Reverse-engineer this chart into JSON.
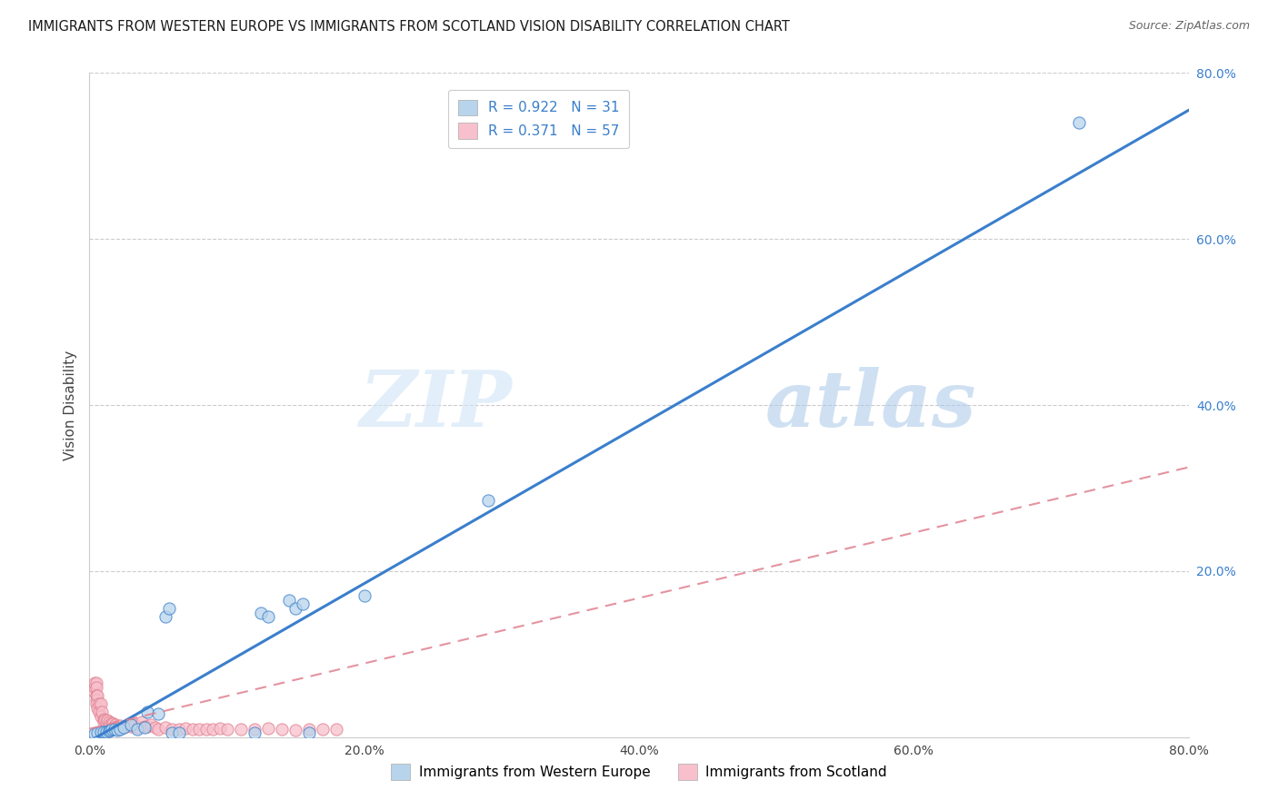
{
  "title": "IMMIGRANTS FROM WESTERN EUROPE VS IMMIGRANTS FROM SCOTLAND VISION DISABILITY CORRELATION CHART",
  "source": "Source: ZipAtlas.com",
  "ylabel": "Vision Disability",
  "xlim": [
    0.0,
    0.8
  ],
  "ylim": [
    0.0,
    0.8
  ],
  "xtick_labels": [
    "0.0%",
    "20.0%",
    "40.0%",
    "60.0%",
    "80.0%"
  ],
  "xtick_vals": [
    0.0,
    0.2,
    0.4,
    0.6,
    0.8
  ],
  "ytick_labels": [
    "20.0%",
    "40.0%",
    "60.0%",
    "80.0%"
  ],
  "ytick_vals": [
    0.2,
    0.4,
    0.6,
    0.8
  ],
  "legend_r1": "0.922",
  "legend_n1": "31",
  "legend_r2": "0.371",
  "legend_n2": "57",
  "legend_label1": "Immigrants from Western Europe",
  "legend_label2": "Immigrants from Scotland",
  "blue_scatter_color": "#b8d4ec",
  "blue_line_color": "#3a7fcc",
  "pink_scatter_color": "#f7c0cc",
  "pink_line_color": "#e08090",
  "watermark_zip": "ZIP",
  "watermark_atlas": "atlas",
  "blue_regression_x0": 0.0,
  "blue_regression_y0": -0.005,
  "blue_regression_x1": 0.8,
  "blue_regression_y1": 0.755,
  "pink_regression_x0": 0.0,
  "pink_regression_y0": 0.01,
  "pink_regression_x1": 0.8,
  "pink_regression_y1": 0.325,
  "blue_scatter_x": [
    0.004,
    0.006,
    0.008,
    0.01,
    0.012,
    0.014,
    0.015,
    0.016,
    0.018,
    0.02,
    0.022,
    0.025,
    0.03,
    0.035,
    0.04,
    0.042,
    0.05,
    0.055,
    0.058,
    0.06,
    0.065,
    0.12,
    0.125,
    0.13,
    0.145,
    0.15,
    0.155,
    0.16,
    0.2,
    0.29,
    0.72
  ],
  "blue_scatter_y": [
    0.004,
    0.005,
    0.006,
    0.006,
    0.006,
    0.007,
    0.008,
    0.01,
    0.009,
    0.008,
    0.01,
    0.012,
    0.015,
    0.01,
    0.012,
    0.03,
    0.028,
    0.145,
    0.155,
    0.005,
    0.005,
    0.005,
    0.15,
    0.145,
    0.165,
    0.155,
    0.16,
    0.005,
    0.17,
    0.285,
    0.74
  ],
  "pink_scatter_x": [
    0.003,
    0.004,
    0.004,
    0.005,
    0.005,
    0.005,
    0.005,
    0.005,
    0.006,
    0.006,
    0.007,
    0.007,
    0.008,
    0.008,
    0.009,
    0.01,
    0.01,
    0.011,
    0.012,
    0.013,
    0.014,
    0.015,
    0.016,
    0.017,
    0.018,
    0.019,
    0.02,
    0.022,
    0.025,
    0.028,
    0.03,
    0.033,
    0.035,
    0.038,
    0.04,
    0.042,
    0.045,
    0.048,
    0.05,
    0.055,
    0.06,
    0.065,
    0.07,
    0.075,
    0.08,
    0.085,
    0.09,
    0.095,
    0.1,
    0.11,
    0.12,
    0.13,
    0.14,
    0.15,
    0.16,
    0.17,
    0.18
  ],
  "pink_scatter_y": [
    0.055,
    0.06,
    0.065,
    0.065,
    0.06,
    0.05,
    0.045,
    0.04,
    0.05,
    0.035,
    0.04,
    0.03,
    0.04,
    0.025,
    0.03,
    0.022,
    0.018,
    0.02,
    0.018,
    0.02,
    0.018,
    0.015,
    0.017,
    0.016,
    0.013,
    0.015,
    0.013,
    0.014,
    0.012,
    0.015,
    0.013,
    0.015,
    0.012,
    0.018,
    0.013,
    0.013,
    0.015,
    0.012,
    0.01,
    0.012,
    0.01,
    0.01,
    0.011,
    0.01,
    0.009,
    0.01,
    0.01,
    0.011,
    0.009,
    0.01,
    0.01,
    0.011,
    0.009,
    0.008,
    0.009,
    0.01,
    0.009
  ]
}
